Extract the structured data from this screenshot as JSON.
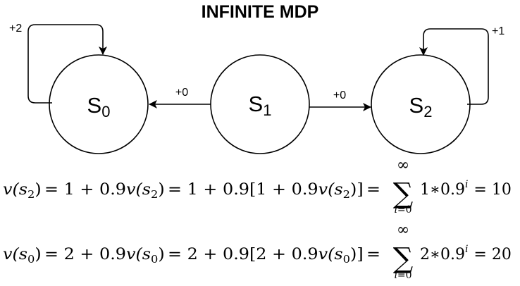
{
  "title": "INFINITE MDP",
  "states": [
    {
      "id": "s0",
      "letter": "S",
      "subscript": "0"
    },
    {
      "id": "s1",
      "letter": "S",
      "subscript": "1"
    },
    {
      "id": "s2",
      "letter": "S",
      "subscript": "2"
    }
  ],
  "rewards": {
    "s0_self": "+2",
    "s1_to_s0": "+0",
    "s1_to_s2": "+0",
    "s2_self": "+1"
  },
  "equations": [
    {
      "lhs_v": "v",
      "lhs_arg_open": "(s",
      "lhs_arg_sub": "2",
      "lhs_arg_close": ")",
      "eq1": "= 1 + 0.9",
      "mid_v": "v",
      "mid_arg_open": "(s",
      "mid_arg_sub": "2",
      "mid_arg_close": ")",
      "eq2": "= 1 + 0.9[1 + 0.9",
      "inner_v": "v",
      "inner_arg_open": "(s",
      "inner_arg_sub": "2",
      "inner_arg_close": ")]",
      "eq3": "=",
      "sum_upper": "∞",
      "sum_symbol": "∑",
      "sum_lower_var": "i",
      "sum_lower_rest": "=0",
      "term_base": "1∗0.9",
      "term_exp": "i",
      "result": "= 10"
    },
    {
      "lhs_v": "v",
      "lhs_arg_open": "(s",
      "lhs_arg_sub": "0",
      "lhs_arg_close": ")",
      "eq1": "= 2 + 0.9",
      "mid_v": "v",
      "mid_arg_open": "(s",
      "mid_arg_sub": "0",
      "mid_arg_close": ")",
      "eq2": "= 2 + 0.9[2 + 0.9",
      "inner_v": "v",
      "inner_arg_open": "(s",
      "inner_arg_sub": "0",
      "inner_arg_close": ")]",
      "eq3": "=",
      "sum_upper": "∞",
      "sum_symbol": "∑",
      "sum_lower_var": "i",
      "sum_lower_rest": "=0",
      "term_base": "2∗0.9",
      "term_exp": "i",
      "result": "= 20"
    }
  ]
}
